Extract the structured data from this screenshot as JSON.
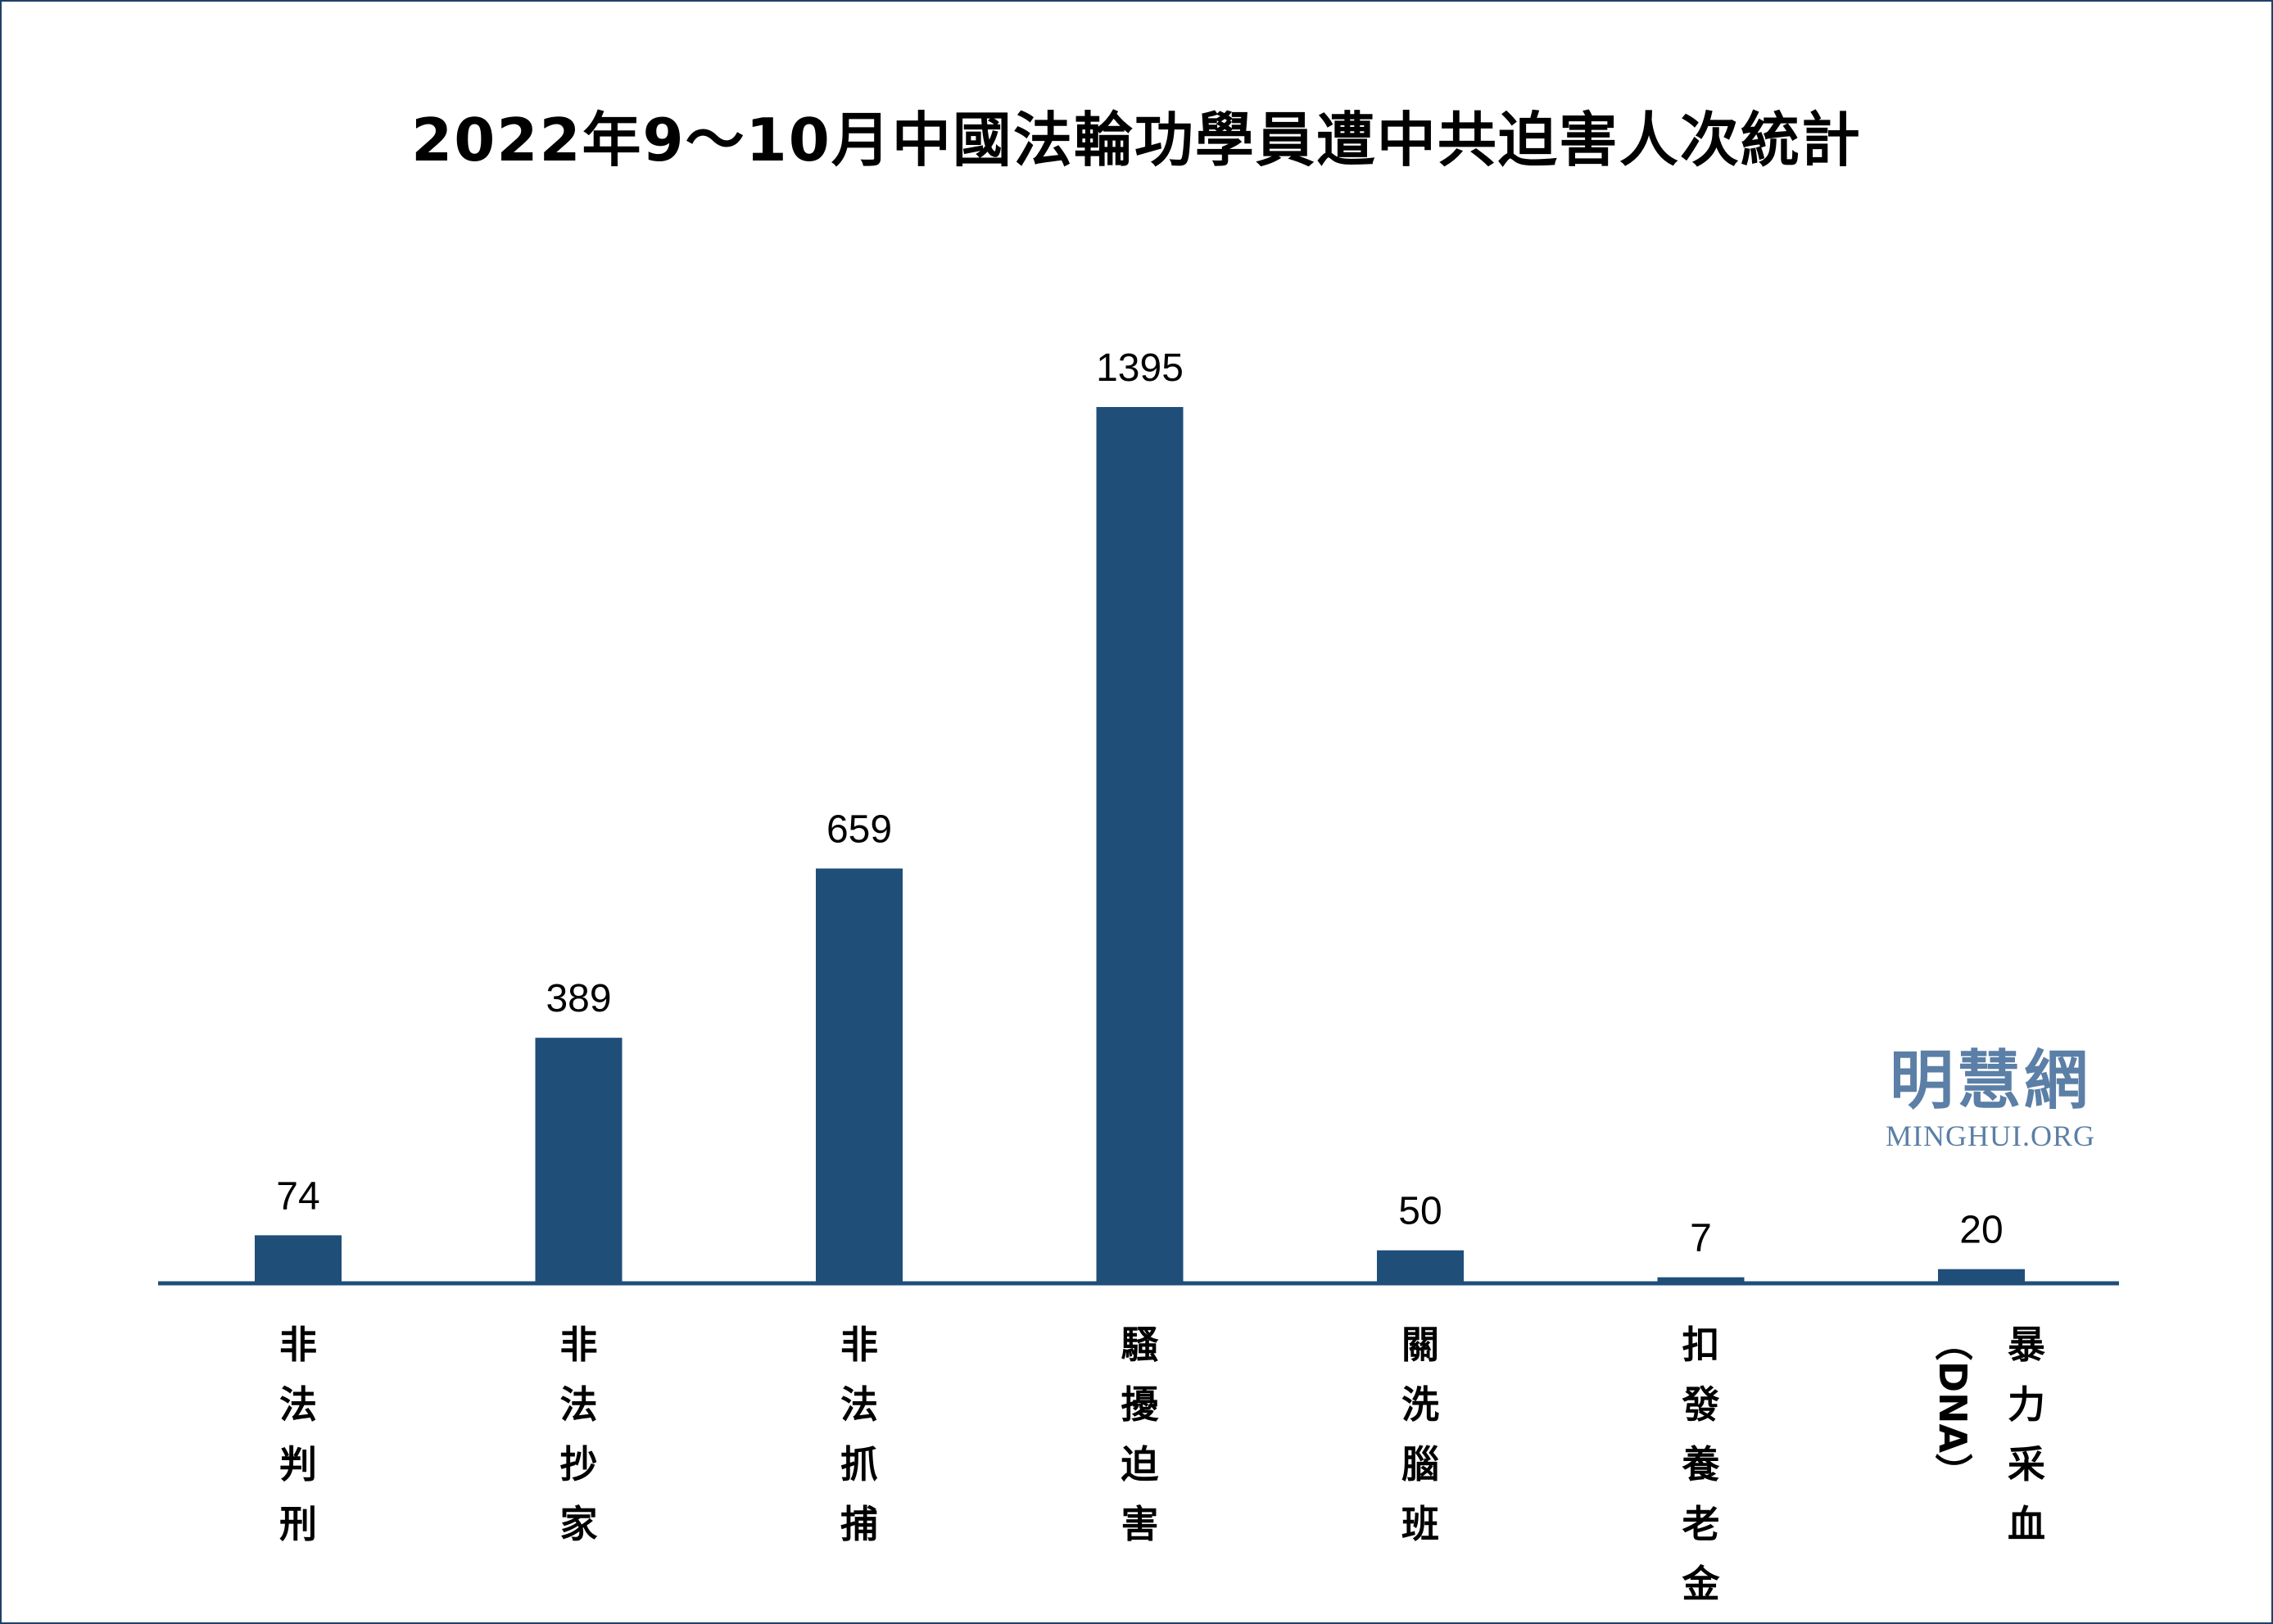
{
  "chart_data": {
    "type": "bar",
    "title": "2022年9～10月中國法輪功學員遭中共迫害人次統計",
    "categories": [
      "非法判刑",
      "非法抄家",
      "非法抓捕",
      "騷擾迫害",
      "關洗腦班",
      "扣發養老金",
      "暴力采血（DNA）"
    ],
    "values": [
      74,
      389,
      659,
      1395,
      50,
      7,
      20
    ],
    "series": [
      {
        "values": [
          74,
          389,
          659,
          1395,
          50,
          7,
          20
        ]
      }
    ],
    "xlabel": "",
    "ylabel": "",
    "ylim": [
      0,
      1500
    ],
    "grid": false,
    "legend": "none",
    "data_labels": true
  },
  "colors": {
    "bar": "#1f4e79",
    "axis": "#1f4e79",
    "frame": "#1f3f66",
    "logo": "#5b7fa6"
  },
  "logo": {
    "chinese": "明慧網",
    "english": "MINGHUI.ORG"
  }
}
